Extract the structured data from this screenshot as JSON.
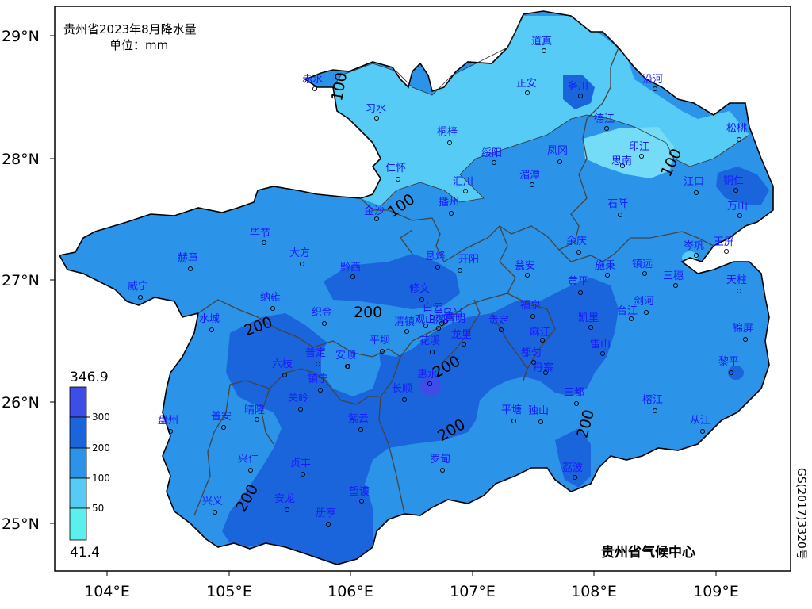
{
  "title": {
    "line1": "贵州省2023年8月降水量",
    "line2": "单位：mm"
  },
  "axes": {
    "lat_ticks": [
      "29°N",
      "28°N",
      "27°N",
      "26°N",
      "25°N"
    ],
    "lon_ticks": [
      "104°E",
      "105°E",
      "106°E",
      "107°E",
      "108°E",
      "109°E"
    ]
  },
  "legend": {
    "max_label": "346.9",
    "min_label": "41.4",
    "levels": [
      "300",
      "200",
      "100",
      "50"
    ],
    "colors": [
      "#3d4de6",
      "#1a64dc",
      "#2b93e8",
      "#55cbf5",
      "#5af0ee"
    ]
  },
  "contour_labels": [
    "100",
    "100",
    "100",
    "200",
    "200",
    "200",
    "200",
    "200",
    "200",
    "200"
  ],
  "stations": [
    "道真",
    "赤水",
    "习水",
    "正安",
    "务川",
    "沿河",
    "桐梓",
    "德江",
    "松桃",
    "绥阳",
    "凤冈",
    "印江",
    "思南",
    "仁怀",
    "汇川",
    "湄潭",
    "江口",
    "铜仁",
    "金沙",
    "播州",
    "石阡",
    "万山",
    "毕节",
    "大方",
    "息烽",
    "开阳",
    "余庆",
    "瓮安",
    "岑巩",
    "玉屏",
    "赫章",
    "黔西",
    "施秉",
    "镇远",
    "三穗",
    "天柱",
    "威宁",
    "纳雍",
    "修文",
    "乌当",
    "白云",
    "黄平",
    "福泉",
    "剑河",
    "台江",
    "织金",
    "水城",
    "清镇",
    "观山湖",
    "云岩",
    "南明",
    "贵定",
    "麻江",
    "凯里",
    "锦屏",
    "平坝",
    "花溪",
    "龙里",
    "丹寨",
    "雷山",
    "普定",
    "安顺",
    "都匀",
    "黎平",
    "六枝",
    "西秀",
    "镇宁",
    "长顺",
    "惠水",
    "三都",
    "关岭",
    "晴隆",
    "紫云",
    "平塘",
    "独山",
    "榕江",
    "从江",
    "盘州",
    "普安",
    "兴仁",
    "贞丰",
    "罗甸",
    "荔波",
    "兴义",
    "安龙",
    "望谟",
    "册亨"
  ],
  "org": "贵州省气候中心",
  "map_code": "GS(2017)3320号"
}
